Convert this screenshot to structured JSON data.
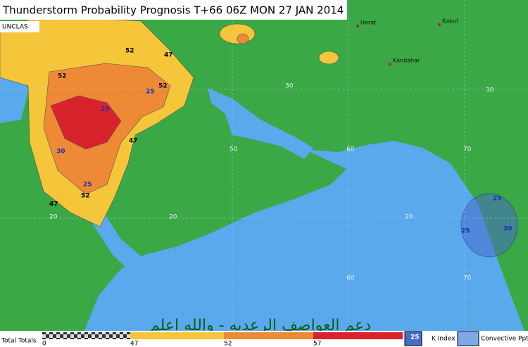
{
  "title": "Thunderstorm Probability Prognosis T+66 06Z MON 27 JAN 2014",
  "classification": "UNCLAS",
  "cities": [
    "Herat",
    "Kabul",
    "Kandahar"
  ],
  "grid_labels": [
    30,
    30,
    20,
    20,
    20,
    50,
    60,
    70,
    60,
    70
  ],
  "contour_labels": [
    52,
    47,
    52,
    52,
    25,
    25,
    30,
    47,
    25,
    52,
    47,
    25,
    25,
    30
  ],
  "caption": "دعم العواصف الرعديه - والله اعلم",
  "legend": {
    "title": "Total Totals",
    "ticks": [
      0,
      47,
      52,
      57
    ],
    "k_index_sample": 25,
    "k_index": "K Index",
    "convective": "Convective Pptn"
  }
}
